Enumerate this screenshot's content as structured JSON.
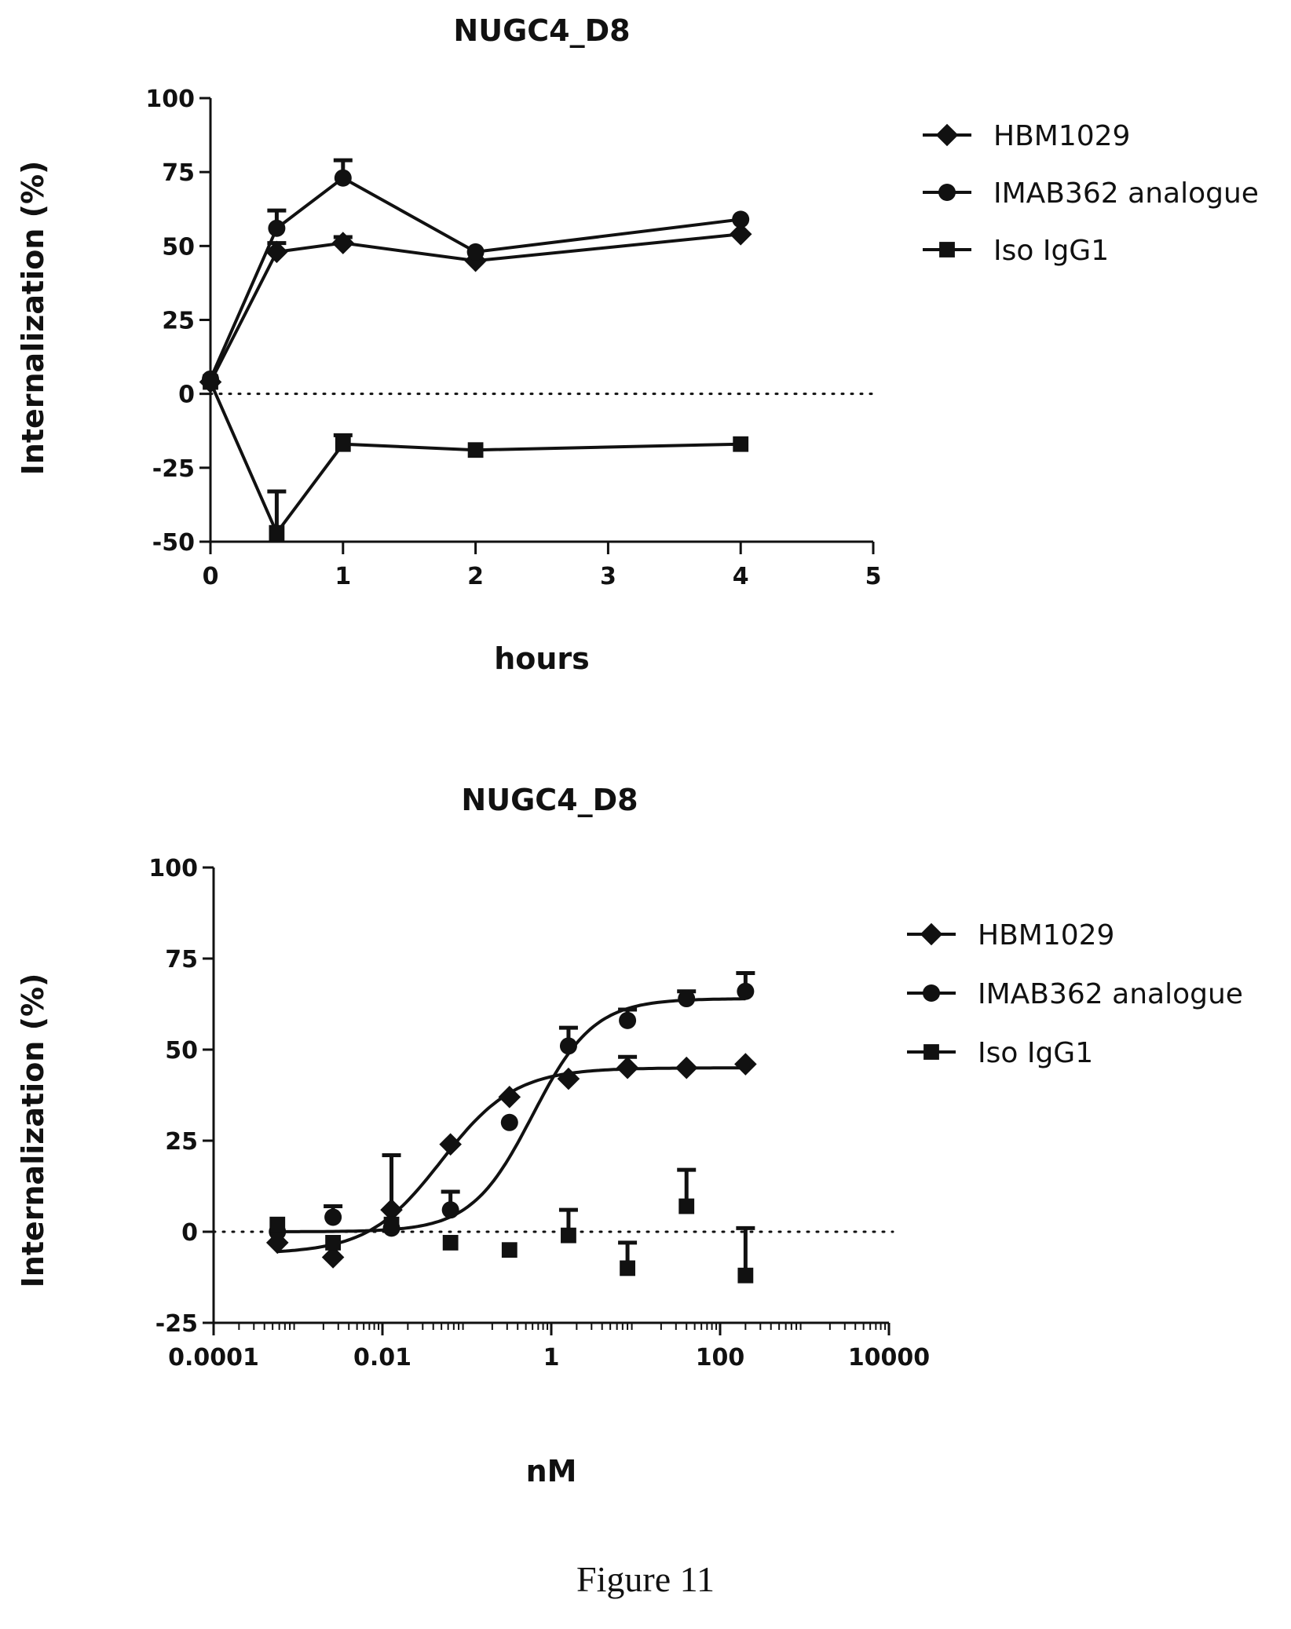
{
  "figure": {
    "caption": "Figure 11"
  },
  "chart_data": [
    {
      "type": "line",
      "title": "NUGC4_D8",
      "xlabel": "hours",
      "ylabel": "Internalization (%)",
      "xlim": [
        0,
        5
      ],
      "ylim": [
        -50,
        100
      ],
      "xticks": [
        0,
        1,
        2,
        3,
        4,
        5
      ],
      "yticks": [
        -50,
        -25,
        0,
        25,
        50,
        75,
        100
      ],
      "reference_line": 0,
      "legend_position": "top-right",
      "series": [
        {
          "name": "HBM1029",
          "marker": "diamond",
          "x": [
            0,
            0.5,
            1,
            2,
            4
          ],
          "y": [
            4,
            48,
            51,
            45,
            54
          ],
          "err": [
            0,
            3,
            2,
            0,
            0
          ]
        },
        {
          "name": "IMAB362 analogue",
          "marker": "circle",
          "x": [
            0,
            0.5,
            1,
            2,
            4
          ],
          "y": [
            5,
            56,
            73,
            48,
            59
          ],
          "err": [
            0,
            6,
            6,
            0,
            0
          ]
        },
        {
          "name": "Iso IgG1",
          "marker": "square",
          "x": [
            0,
            0.5,
            1,
            2,
            4
          ],
          "y": [
            4,
            -47,
            -17,
            -19,
            -17
          ],
          "err": [
            0,
            14,
            3,
            0,
            0
          ]
        }
      ]
    },
    {
      "type": "scatter",
      "title": "NUGC4_D8",
      "xlabel": "nM",
      "ylabel": "Internalization (%)",
      "xscale": "log",
      "xlim": [
        0.0001,
        10000
      ],
      "ylim": [
        -25,
        100
      ],
      "xticks": [
        0.0001,
        0.01,
        1,
        100,
        10000
      ],
      "xtick_labels": [
        "0.0001",
        "0.01",
        "1",
        "100",
        "10000"
      ],
      "yticks": [
        -25,
        0,
        25,
        50,
        75,
        100
      ],
      "reference_line": 0,
      "legend_position": "top-right",
      "series": [
        {
          "name": "HBM1029",
          "marker": "diamond",
          "x": [
            0.00057,
            0.0026,
            0.0128,
            0.064,
            0.32,
            1.6,
            8,
            40,
            200
          ],
          "y": [
            -3,
            -7,
            6,
            24,
            37,
            42,
            45,
            45,
            46
          ],
          "err": [
            0,
            0,
            15,
            0,
            0,
            0,
            3,
            0,
            0
          ],
          "fit": {
            "bottom": -6,
            "top": 45,
            "ec50": 0.05,
            "hill": 1.0
          }
        },
        {
          "name": "IMAB362 analogue",
          "marker": "circle",
          "x": [
            0.00057,
            0.0026,
            0.0128,
            0.064,
            0.32,
            1.6,
            8,
            40,
            200
          ],
          "y": [
            0,
            4,
            1,
            6,
            30,
            51,
            58,
            64,
            66
          ],
          "err": [
            0,
            3,
            0,
            5,
            0,
            5,
            3,
            2,
            5
          ],
          "fit": {
            "bottom": 0,
            "top": 64,
            "ec50": 0.6,
            "hill": 1.2
          }
        },
        {
          "name": "Iso IgG1",
          "marker": "square",
          "x": [
            0.00057,
            0.0026,
            0.0128,
            0.064,
            0.32,
            1.6,
            8,
            40,
            200
          ],
          "y": [
            2,
            -3,
            2,
            -3,
            -5,
            -1,
            -10,
            7,
            -12
          ],
          "err": [
            0,
            0,
            0,
            0,
            0,
            7,
            7,
            10,
            13
          ]
        }
      ]
    }
  ]
}
